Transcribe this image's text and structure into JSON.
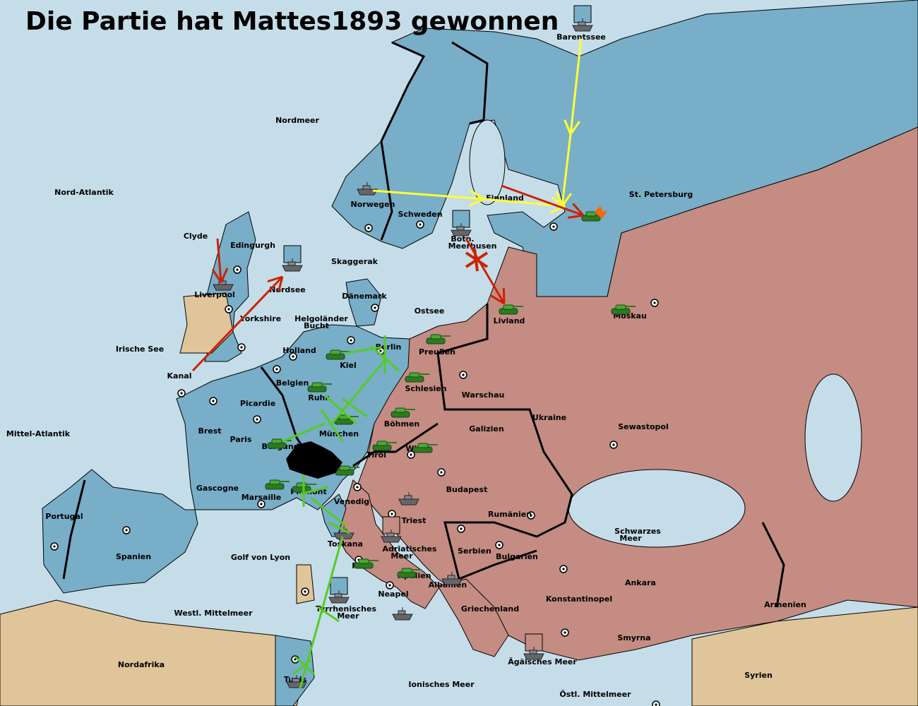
{
  "title": "Die Partie hat Mattes1893 gewonnen",
  "colors": {
    "sea": "#c5dde9",
    "power_blue": "#78aec8",
    "power_rose": "#c48c82",
    "neutral_land": "#e0c49a",
    "move_yellow": "#ffff33",
    "move_red": "#cc2200",
    "support_green": "#55cc22"
  },
  "territories": [
    "Barentssee",
    "Nordmeer",
    "Nord-Atlantik",
    "St. Petersburg",
    "Finnland",
    "Norwegen",
    "Schweden",
    "Clyde",
    "Edingurgh",
    "Botn.",
    "Meerbusen",
    "Skaggerak",
    "Nordsee",
    "Liverpool",
    "Dänemark",
    "Ostsee",
    "Yorkshire",
    "Helgoländer",
    "Bucht",
    "Livland",
    "Moskau",
    "Irische See",
    "Holland",
    "Preußen",
    "Berlin",
    "Kiel",
    "Kanal",
    "Belgien",
    "Schlesien",
    "Warschau",
    "Ruhr",
    "Picardie",
    "Ukraine",
    "Böhmen",
    "Galizien",
    "Sewastopol",
    "Brest",
    "Mittel-Atlantik",
    "Paris",
    "München",
    "Burgund",
    "Tirol",
    "Wien",
    "Gascogne",
    "Budapest",
    "Piemont",
    "Marsaille",
    "Venedig",
    "Portugal",
    "Rumänien",
    "Triest",
    "Schwarzes",
    "Meer",
    "Spanien",
    "Golf von Lyon",
    "Toskana",
    "Adriatisches",
    "Meer",
    "Serbien",
    "Bulgarien",
    "Rom",
    "Apulien",
    "Albanien",
    "Ankara",
    "Neapel",
    "Konstantinopel",
    "Armenien",
    "Westl. Mittelmeer",
    "Tyrrhenisches",
    "Meer",
    "Griechenland",
    "Smyrna",
    "Nordafrika",
    "Ägäisches Meer",
    "Syrien",
    "Tunis",
    "Ionisches Meer",
    "Östl. Mittelmeer"
  ],
  "units": {
    "army_icon": "tank-icon",
    "fleet_icon": "battleship-icon",
    "army_count": 17,
    "fleet_count": 12
  }
}
